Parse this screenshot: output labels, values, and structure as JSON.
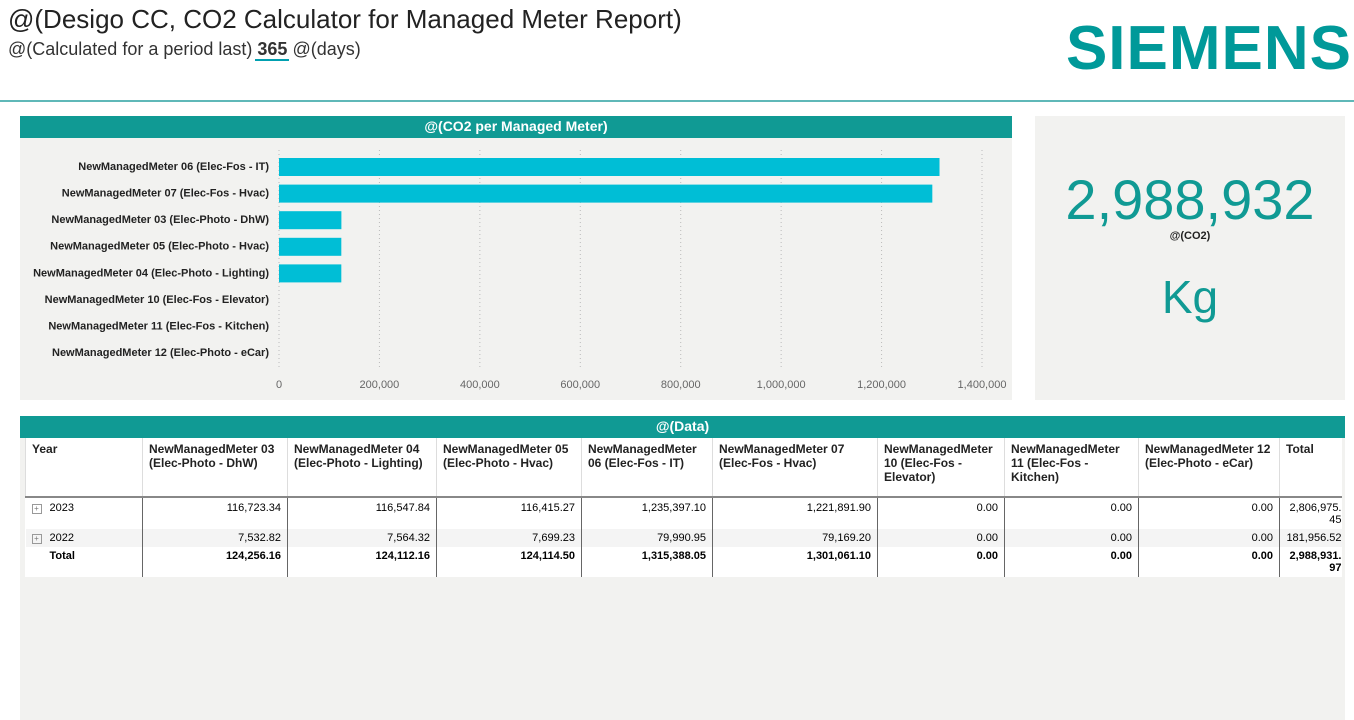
{
  "header": {
    "title": "@(Desigo CC, CO2 Calculator for Managed Meter Report)",
    "subtitle_prefix": "@(Calculated for a period last)",
    "period": "365",
    "subtitle_suffix": "@(days)",
    "logo": "SIEMENS"
  },
  "chart_data": {
    "type": "bar",
    "orientation": "horizontal",
    "title": "@(CO2 per Managed Meter)",
    "categories": [
      "NewManagedMeter 06 (Elec-Fos - IT)",
      "NewManagedMeter 07 (Elec-Fos - Hvac)",
      "NewManagedMeter 03 (Elec-Photo - DhW)",
      "NewManagedMeter 05 (Elec-Photo - Hvac)",
      "NewManagedMeter 04 (Elec-Photo - Lighting)",
      "NewManagedMeter 10 (Elec-Fos - Elevator)",
      "NewManagedMeter 11 (Elec-Fos - Kitchen)",
      "NewManagedMeter 12 (Elec-Photo - eCar)"
    ],
    "values": [
      1315388.05,
      1301061.1,
      124256.16,
      124114.5,
      124112.16,
      0,
      0,
      0
    ],
    "color": "#00bed6",
    "xlim": [
      0,
      1400000
    ],
    "xticks": [
      0,
      {
        "value": 200000,
        "label": "200,000"
      },
      {
        "value": 400000,
        "label": "400,000"
      },
      {
        "value": 600000,
        "label": "600,000"
      },
      {
        "value": 800000,
        "label": "800,000"
      },
      {
        "value": 1000000,
        "label": "1,000,000"
      },
      {
        "value": 1200000,
        "label": "1,200,000"
      },
      {
        "value": 1400000,
        "label": "1,400,000"
      }
    ],
    "grid": true
  },
  "card": {
    "value": "2,988,932",
    "label": "@(CO2)",
    "unit": "Kg"
  },
  "table": {
    "title": "@(Data)",
    "headers": [
      "Year",
      "NewManagedMeter 03 (Elec-Photo - DhW)",
      "NewManagedMeter 04 (Elec-Photo - Lighting)",
      "NewManagedMeter 05 (Elec-Photo - Hvac)",
      "NewManagedMeter 06 (Elec-Fos - IT)",
      "NewManagedMeter 07 (Elec-Fos - Hvac)",
      "NewManagedMeter 10 (Elec-Fos - Elevator)",
      "NewManagedMeter 11 (Elec-Fos - Kitchen)",
      "NewManagedMeter 12 (Elec-Photo - eCar)",
      "Total"
    ],
    "rows": [
      [
        "2023",
        "116,723.34",
        "116,547.84",
        "116,415.27",
        "1,235,397.10",
        "1,221,891.90",
        "0.00",
        "0.00",
        "0.00",
        "2,806,975.45"
      ],
      [
        "2022",
        "7,532.82",
        "7,564.32",
        "7,699.23",
        "79,990.95",
        "79,169.20",
        "0.00",
        "0.00",
        "0.00",
        "181,956.52"
      ],
      [
        "Total",
        "124,256.16",
        "124,112.16",
        "124,114.50",
        "1,315,388.05",
        "1,301,061.10",
        "0.00",
        "0.00",
        "0.00",
        "2,988,931.97"
      ]
    ]
  }
}
